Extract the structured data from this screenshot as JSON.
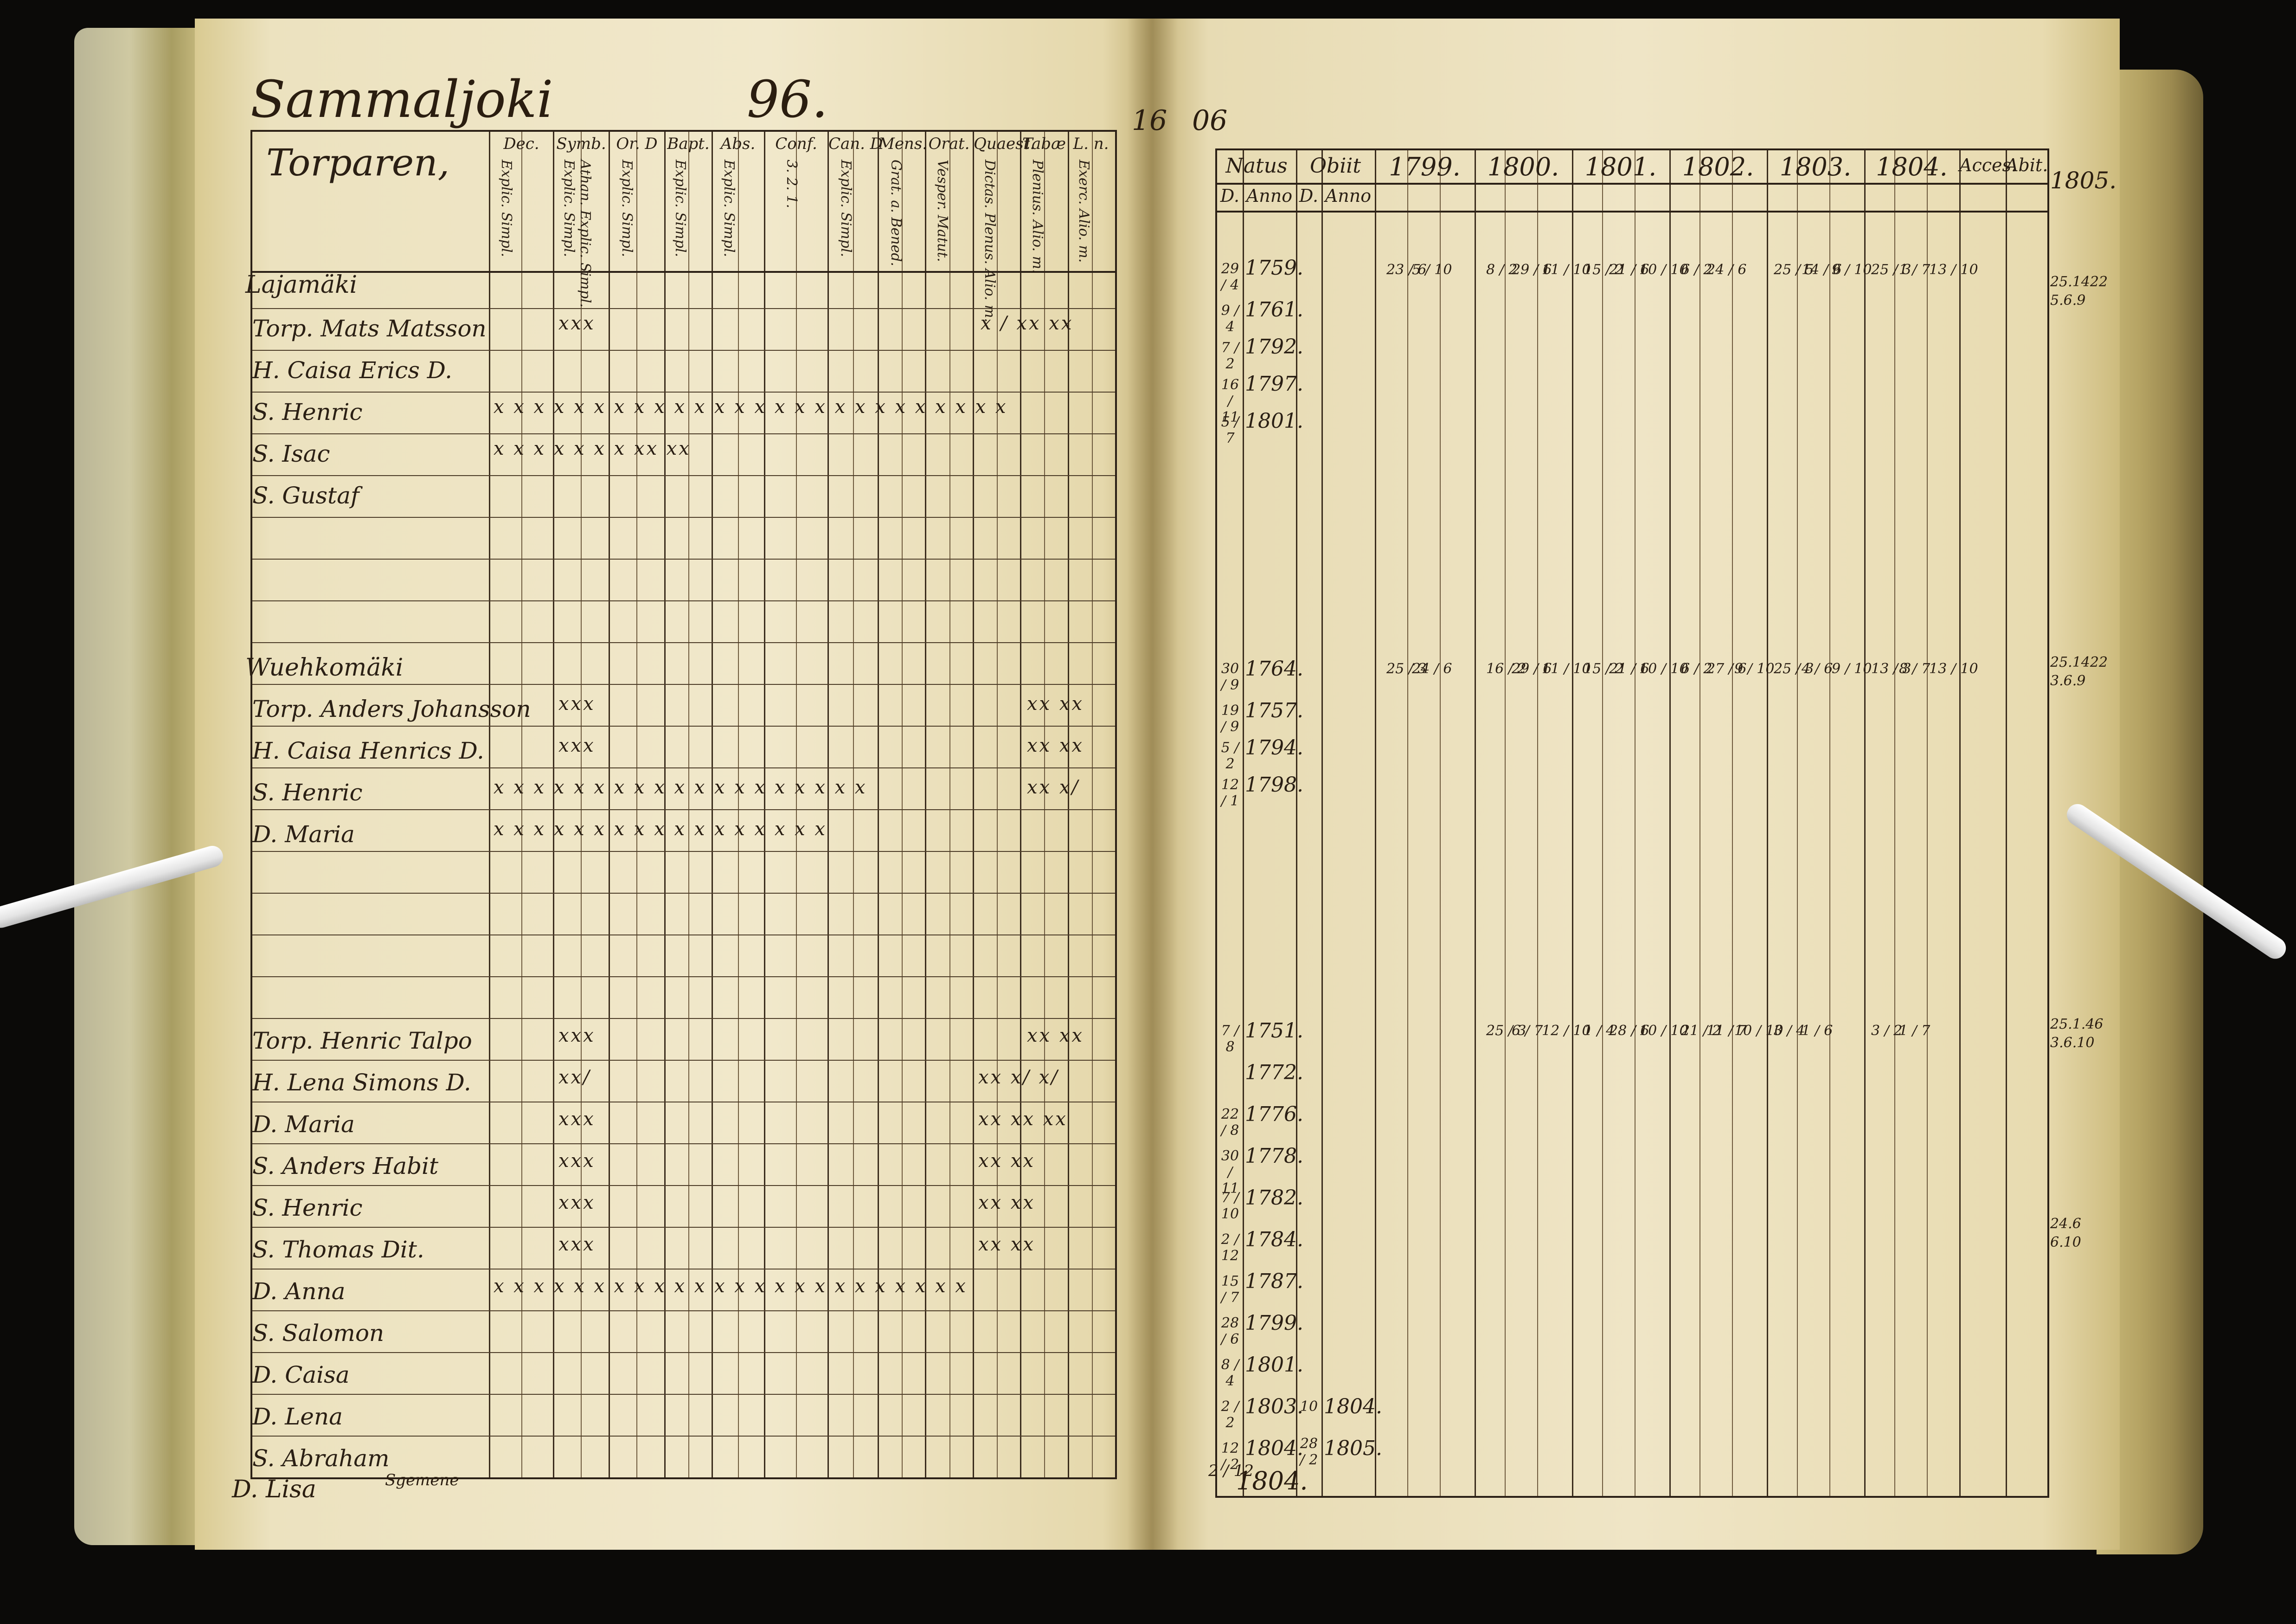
{
  "left_page": {
    "title": "Sammaljoki",
    "page_number": "96.",
    "header_label": "Torparen,",
    "column_headers": [
      "Dec.",
      "Symb.",
      "Or. D",
      "Bapt.",
      "Abs.",
      "Conf.",
      "Can. D",
      "Mens.",
      "Orat.",
      "Quaest.",
      "Tabæ",
      "L. n."
    ],
    "column_subheaders": [
      "Explic. Simpl.",
      "Explic. Simpl.",
      "Athan. Explic. Simpl.",
      "Explic. Simpl.",
      "Explic. Simpl.",
      "Explic. Simpl.",
      "3. 2. 1.",
      "Explic. Simpl.",
      "Grat. a. Bened.",
      "Vesper. Matut.",
      "Dictas. Plenus. Alio. m.",
      "Plenius. Alio. m.",
      "Exerc. Alio. m."
    ],
    "groups": [
      {
        "farm": "Lajamäki",
        "rows": [
          {
            "name": "Torp. Mats Matsson",
            "marks": "xxx",
            "marks2": "x /  xx xx"
          },
          {
            "name": "H. Caisa Erics D.",
            "marks": "",
            "marks2": ""
          },
          {
            "name": "S. Henric",
            "marks": "x x  x x x  x x  x x  x x  x x x  x x  x x  x x  x x  x x  x x",
            "marks2": ""
          },
          {
            "name": "S. Isac",
            "marks": "x   x   x   x   x   x   x   xx  xx",
            "marks2": ""
          },
          {
            "name": "S. Gustaf",
            "marks": "",
            "marks2": ""
          }
        ]
      },
      {
        "farm": "Wuehkomäki",
        "rows": [
          {
            "name": "Torp. Anders Johansson",
            "marks": "xxx",
            "marks2": "xx xx"
          },
          {
            "name": "H. Caisa Henrics D.",
            "marks": "xxx",
            "marks2": "xx xx"
          },
          {
            "name": "S. Henric",
            "marks": "x x  x x x  x x  x x  x x x  x x  x x  x x  x",
            "marks2": "xx x/"
          },
          {
            "name": "D. Maria",
            "marks": "x x  x x  x x  x x  x x  x x x  x x  x x",
            "marks2": ""
          }
        ]
      },
      {
        "farm": "",
        "rows": [
          {
            "name": "Torp. Henric Talpo",
            "marks": "xxx",
            "marks2": "xx xx"
          },
          {
            "name": "H. Lena Simons D.",
            "marks": "xx/",
            "marks2": "xx  x/  x/"
          },
          {
            "name": "D. Maria",
            "marks": "xxx",
            "marks2": "xx xx xx"
          },
          {
            "name": "S. Anders Habit",
            "marks": "xxx",
            "marks2": "xx  xx"
          },
          {
            "name": "S. Henric",
            "marks": "xxx",
            "marks2": "xx  xx"
          },
          {
            "name": "S. Thomas Dit.",
            "marks": "xxx",
            "marks2": "xx  xx"
          },
          {
            "name": "D. Anna",
            "marks": "x x  x x x  x x  x x  x x  x x x  x x  x x  x x  x x  x x",
            "marks2": ""
          },
          {
            "name": "S. Salomon",
            "marks": "",
            "marks2": ""
          },
          {
            "name": "D. Caisa",
            "marks": "",
            "marks2": ""
          },
          {
            "name": "D. Lena",
            "marks": "",
            "marks2": ""
          },
          {
            "name": "S. Abraham",
            "marks": "",
            "marks2": ""
          }
        ]
      }
    ],
    "footer_name": "D. Lisa",
    "margin_note": "Sgemene"
  },
  "right_page": {
    "folio_left": "16",
    "folio_right": "06",
    "headers": [
      "Natus",
      "Obiit",
      "1799.",
      "1800.",
      "1801.",
      "1802.",
      "1803.",
      "1804.",
      "Acces.",
      "Abit.",
      "1805."
    ],
    "subheaders": [
      "D.",
      "Anno",
      "D.",
      "Anno"
    ],
    "births": [
      {
        "day": "29 / 4",
        "year": "1759."
      },
      {
        "day": "9 / 4",
        "year": "1761."
      },
      {
        "day": "7 / 2",
        "year": "1792."
      },
      {
        "day": "16 / 11",
        "year": "1797."
      },
      {
        "day": "5 / 7",
        "year": "1801."
      },
      {
        "day": "30 / 9",
        "year": "1764."
      },
      {
        "day": "19 / 9",
        "year": "1757."
      },
      {
        "day": "5 / 2",
        "year": "1794."
      },
      {
        "day": "12 / 1",
        "year": "1798."
      },
      {
        "day": "7 / 8",
        "year": "1751."
      },
      {
        "day": "",
        "year": "1772."
      },
      {
        "day": "22 / 8",
        "year": "1776."
      },
      {
        "day": "30 / 11",
        "year": "1778."
      },
      {
        "day": "7 / 10",
        "year": "1782."
      },
      {
        "day": "2 / 12",
        "year": "1784."
      },
      {
        "day": "15 / 7",
        "year": "1787."
      },
      {
        "day": "28 / 6",
        "year": "1799."
      },
      {
        "day": "8 / 4",
        "year": "1801."
      },
      {
        "day": "2 / 2",
        "year": "1803."
      },
      {
        "day": "12 / 2",
        "year": "1804."
      }
    ],
    "deaths": [
      {
        "day": "10",
        "year": "1804."
      },
      {
        "day": "28 / 2",
        "year": "1805."
      }
    ],
    "year_entries": [
      [
        "23 / 6",
        "5 / 10",
        "8 / 2",
        "29 / 6",
        "11 / 10",
        "15 / 2",
        "21 / 6",
        "10 / 10",
        "6 / 2",
        "24 / 6",
        "25 / 5",
        "14 / 6",
        "9 / 10",
        "25 / 3",
        "1 / 7",
        "13 / 10"
      ],
      [
        "25 / 3",
        "24 / 6",
        "16 / 2",
        "29 / 6",
        "11 / 10",
        "15 / 2",
        "21 / 6",
        "10 / 10",
        "6 / 2",
        "27 / 6",
        "9 / 10",
        "25 / 3",
        "4 / 6",
        "9 / 10",
        "13 / 3",
        "8 / 7",
        "13 / 10"
      ],
      [
        "25 / 3",
        "6 / 7",
        "12 / 10",
        "1 / 4",
        "28 / 6",
        "10 / 10",
        "21 / 2",
        "11 / 7",
        "10 / 10",
        "3 / 4",
        "1 / 6",
        "3 / 2",
        "1 / 7"
      ]
    ],
    "footer_date": "2 / 12",
    "footer_year": "1804.",
    "right_margin_notes": [
      "1805.",
      "25.1422",
      "5.6.9",
      "25.1422",
      "3.6.9",
      "25.1.46",
      "3.6.10",
      "24.6",
      "6.10"
    ]
  }
}
